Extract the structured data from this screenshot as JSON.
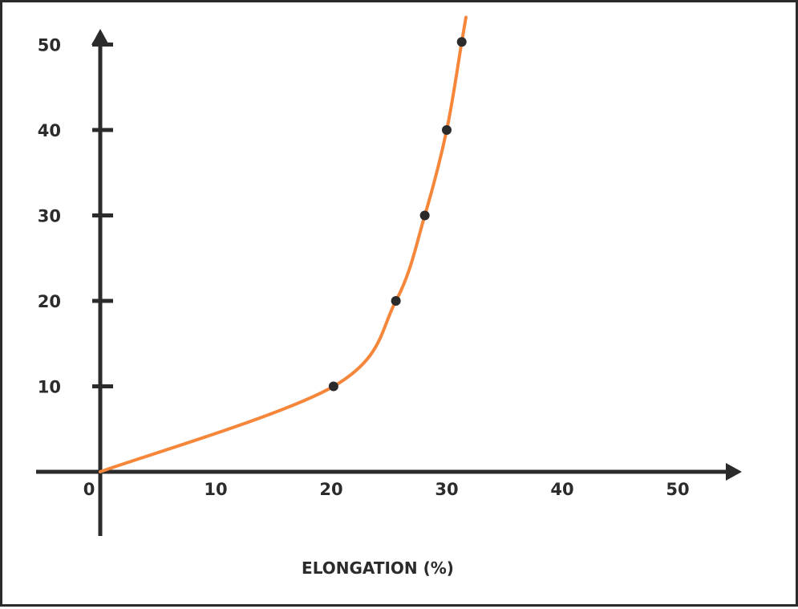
{
  "chart_data": {
    "type": "line",
    "title": "",
    "xlabel": "ELONGATION (%)",
    "ylabel": "",
    "xlim": [
      0,
      50
    ],
    "ylim": [
      0,
      50
    ],
    "x_ticks": [
      "0",
      "10",
      "20",
      "30",
      "40",
      "50"
    ],
    "y_ticks": [
      "10",
      "20",
      "30",
      "40",
      "50"
    ],
    "grid": false,
    "legend": "none",
    "series": [
      {
        "x": [
          0,
          20.2,
          25.6,
          28.1,
          30.0,
          31.3
        ],
        "y": [
          0,
          10,
          20,
          30,
          40,
          50.3
        ]
      }
    ],
    "markers": {
      "x": [
        20.2,
        25.6,
        28.1,
        30.0,
        31.3
      ],
      "y": [
        10,
        20,
        30,
        40,
        50.3
      ]
    },
    "colors": {
      "curve": "#f5863a",
      "axes": "#2b2b2b",
      "markers": "#2b2b2b"
    }
  }
}
